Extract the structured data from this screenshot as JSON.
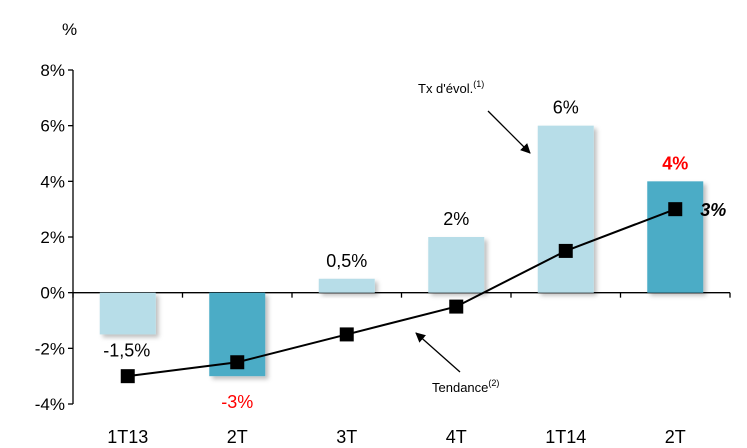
{
  "chart_data": {
    "type": "bar",
    "title": "",
    "unit_label": "%",
    "ylim": [
      -4,
      8
    ],
    "yticks": [
      {
        "value": -4,
        "label": "-4%"
      },
      {
        "value": -2,
        "label": "-2%"
      },
      {
        "value": 0,
        "label": "0%"
      },
      {
        "value": 2,
        "label": "2%"
      },
      {
        "value": 4,
        "label": "4%"
      },
      {
        "value": 6,
        "label": "6%"
      },
      {
        "value": 8,
        "label": "8%"
      }
    ],
    "categories": [
      "1T13",
      "2T",
      "3T",
      "4T",
      "1T14",
      "2T"
    ],
    "bars": {
      "values": [
        -1.5,
        -3,
        0.5,
        2,
        6,
        4
      ],
      "labels": [
        "-1,5%",
        "-3%",
        "0,5%",
        "2%",
        "6%",
        "4%"
      ],
      "highlight": [
        false,
        true,
        false,
        false,
        false,
        true
      ],
      "colors": {
        "normal": "#b7dde8",
        "highlight": "#4bacc6"
      }
    },
    "trend": {
      "values": [
        -3,
        -2.5,
        -1.5,
        -0.5,
        1.5,
        3
      ],
      "end_label": "3%",
      "color": "#000000"
    },
    "label_colors": {
      "default": "#000000",
      "negative_highlight": "#ff0000",
      "positive_highlight": "#ff0000"
    },
    "annotations": {
      "bars": {
        "text": "Tx d'évol.",
        "sup": "(1)"
      },
      "trend": {
        "text": "Tendance",
        "sup": "(2)"
      }
    }
  }
}
